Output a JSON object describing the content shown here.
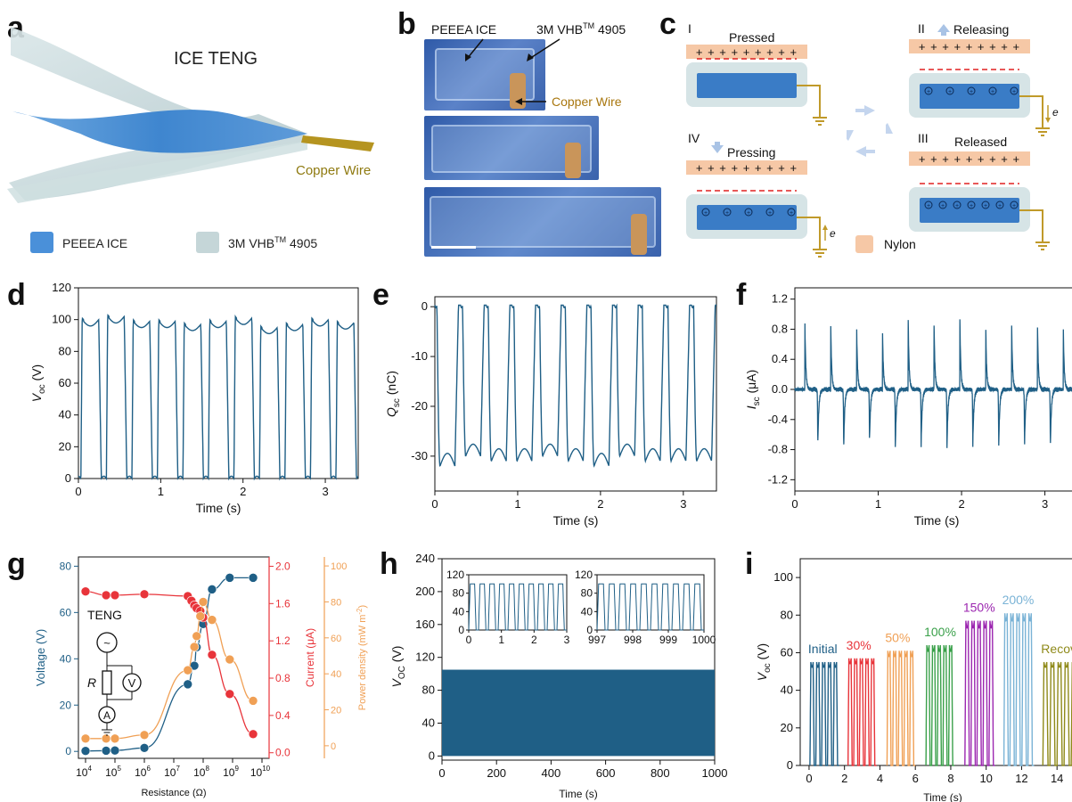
{
  "labels": {
    "a": "a",
    "b": "b",
    "c": "c",
    "d": "d",
    "e": "e",
    "f": "f",
    "g": "g",
    "h": "h",
    "i": "i"
  },
  "panel_a": {
    "title": "ICE TENG",
    "copper": "Copper Wire",
    "legend": [
      {
        "label": "PEEEA ICE",
        "color": "#4a90d9"
      },
      {
        "label": "3M VHB",
        "sup": "TM",
        "label_tail": " 4905",
        "color": "#c5d6d8"
      }
    ]
  },
  "panel_b": {
    "label_ice": "PEEEA ICE",
    "label_vhb": "3M VHB",
    "label_vhb_sup": "TM",
    "label_vhb_tail": " 4905",
    "label_copper": "Copper Wire"
  },
  "panel_c": {
    "stages": [
      {
        "numeral": "I",
        "label": "Pressed"
      },
      {
        "numeral": "II",
        "label": "Releasing"
      },
      {
        "numeral": "III",
        "label": "Released"
      },
      {
        "numeral": "IV",
        "label": "Pressing"
      }
    ],
    "plus_row": "+ + + + + + + + +",
    "electron": "e",
    "nylon": "Nylon",
    "colors": {
      "nylon": "#f6c8a6",
      "ice": "#3a7cc6",
      "vhb": "#d6e4e6",
      "wire": "#c09a2a",
      "minus": "#e02020"
    }
  },
  "chart_data": [
    {
      "id": "d",
      "type": "line",
      "xlabel": "Time (s)",
      "ylabel": "V",
      "ylabel_sub": "oc",
      "ylabel_unit": " (V)",
      "xlim": [
        0,
        3.4
      ],
      "ylim": [
        0,
        120
      ],
      "xticks": [
        0,
        1,
        2,
        3
      ],
      "yticks": [
        0,
        20,
        40,
        60,
        80,
        100,
        120
      ],
      "period": 0.31,
      "phase": 0.03,
      "low": 0,
      "highs": [
        100,
        102,
        99,
        99,
        97,
        99,
        101,
        95,
        97,
        100,
        98
      ],
      "color": "#1f5f86"
    },
    {
      "id": "e",
      "type": "line",
      "xlabel": "Time (s)",
      "ylabel": "Q",
      "ylabel_sub": "sc",
      "ylabel_unit": " (nC)",
      "xlim": [
        0,
        3.4
      ],
      "ylim": [
        -37,
        2
      ],
      "xticks": [
        0,
        1,
        2,
        3
      ],
      "yticks": [
        -30,
        -20,
        -10,
        0
      ],
      "period": 0.31,
      "phase": 0.0,
      "high": 0.3,
      "lows": [
        -32,
        -30,
        -31,
        -31,
        -30,
        -31,
        -32,
        -30,
        -31,
        -31,
        -31
      ],
      "color": "#1f5f86"
    },
    {
      "id": "f",
      "type": "line",
      "xlabel": "Time (s)",
      "ylabel": "I",
      "ylabel_sub": "sc",
      "ylabel_unit": " (μA)",
      "xlim": [
        0,
        3.4
      ],
      "ylim": [
        -1.35,
        1.35
      ],
      "xticks": [
        0,
        1,
        2,
        3
      ],
      "yticks": [
        -1.2,
        -0.8,
        -0.4,
        0.0,
        0.4,
        0.8,
        1.2
      ],
      "ytick_labels": [
        "-1.2",
        "-0.8",
        "-0.4",
        "0.0",
        "0.4",
        "0.8",
        "1.2"
      ],
      "period": 0.31,
      "phase": 0.12,
      "peaks": [
        0.95,
        0.95,
        0.9,
        0.88,
        0.92,
        0.9,
        0.97,
        0.88,
        0.92,
        0.95,
        0.9
      ],
      "troughs": [
        -0.78,
        -0.82,
        -0.72,
        -0.8,
        -0.75,
        -0.8,
        -0.78,
        -0.8,
        -0.78,
        -0.8,
        -0.78
      ],
      "color": "#1f5f86"
    },
    {
      "id": "g",
      "type": "scatter",
      "xlabel": "Resistance (Ω)",
      "x_exponents": [
        4,
        5,
        6,
        7,
        8,
        9,
        10
      ],
      "left_axis": {
        "label": "Voltage (V)",
        "ylim": [
          -3,
          84
        ],
        "ticks": [
          0,
          20,
          40,
          60,
          80
        ],
        "color": "#1f5f86"
      },
      "right_axis": {
        "label": "Current (μA)",
        "ylim": [
          -0.06,
          2.1
        ],
        "ticks": [
          0.0,
          0.4,
          0.8,
          1.2,
          1.6,
          2.0
        ],
        "tick_labels": [
          "0.0",
          "0.4",
          "0.8",
          "1.2",
          "1.6",
          "2.0"
        ],
        "color": "#e8343a"
      },
      "right2_axis": {
        "label": "Power density (mW m",
        "label_sup": "-2",
        "label_tail": ")",
        "ylim": [
          -7,
          105
        ],
        "ticks": [
          0,
          20,
          40,
          60,
          80,
          100
        ],
        "color": "#f0a055"
      },
      "series": [
        {
          "name": "Voltage",
          "axis": "left",
          "color": "#1f5f86",
          "x": [
            10000,
            50000,
            100000,
            1000000,
            30000000,
            50000000,
            60000000,
            100000000,
            200000000,
            800000000,
            5000000000
          ],
          "y": [
            0.2,
            0.3,
            0.4,
            1.5,
            29,
            37,
            45,
            55,
            70,
            75,
            75
          ]
        },
        {
          "name": "Current",
          "axis": "right",
          "color": "#e8343a",
          "x": [
            10000,
            50000,
            100000,
            1000000,
            30000000,
            40000000,
            50000000,
            60000000,
            80000000,
            100000000,
            200000000,
            800000000,
            5000000000
          ],
          "y": [
            1.73,
            1.69,
            1.69,
            1.7,
            1.68,
            1.63,
            1.58,
            1.55,
            1.52,
            1.45,
            1.05,
            0.63,
            0.2
          ]
        },
        {
          "name": "Power density",
          "axis": "right2",
          "color": "#f0a055",
          "x": [
            10000,
            50000,
            100000,
            1000000,
            30000000,
            50000000,
            60000000,
            80000000,
            100000000,
            200000000,
            800000000,
            5000000000
          ],
          "y": [
            4,
            4,
            4,
            6,
            42,
            55,
            61,
            72,
            80,
            70,
            48,
            25
          ]
        }
      ],
      "circuit": {
        "teng": "TENG",
        "r": "R",
        "v": "V",
        "a": "A",
        "source": "~"
      }
    },
    {
      "id": "h",
      "type": "line",
      "xlabel": "Time (s)",
      "ylabel": "V",
      "ylabel_sub": "OC",
      "ylabel_unit": " (V)",
      "xlim": [
        0,
        1000
      ],
      "ylim": [
        -5,
        240
      ],
      "xticks": [
        0,
        200,
        400,
        600,
        800,
        1000
      ],
      "yticks": [
        0,
        40,
        80,
        120,
        160,
        200,
        240
      ],
      "band": [
        0,
        105
      ],
      "color": "#1f5f86",
      "insets": [
        {
          "xlim": [
            0,
            3
          ],
          "ylim": [
            0,
            120
          ],
          "xticks": [
            0,
            1,
            2,
            3
          ],
          "yticks": [
            0,
            40,
            80,
            120
          ],
          "cycles": 10
        },
        {
          "xlim": [
            997,
            1000
          ],
          "ylim": [
            0,
            120
          ],
          "xticks": [
            997,
            998,
            999,
            1000
          ],
          "yticks": [
            0,
            40,
            80,
            120
          ],
          "cycles": 10
        }
      ]
    },
    {
      "id": "i",
      "type": "line",
      "xlabel": "Time (s)",
      "ylabel": "V",
      "ylabel_sub": "oc",
      "ylabel_unit": " (V)",
      "xlim": [
        -0.5,
        15.6
      ],
      "ylim": [
        0,
        110
      ],
      "xticks": [
        0,
        2,
        4,
        6,
        8,
        10,
        12,
        14
      ],
      "yticks": [
        0,
        20,
        40,
        60,
        80,
        100
      ],
      "groups": [
        {
          "label": "Initial",
          "x0": 0.05,
          "x1": 1.7,
          "peak": 55,
          "color": "#1f5f86"
        },
        {
          "label": "30%",
          "x0": 2.2,
          "x1": 3.8,
          "peak": 57,
          "color": "#e8343a"
        },
        {
          "label": "50%",
          "x0": 4.4,
          "x1": 6.0,
          "peak": 61,
          "color": "#f0a055"
        },
        {
          "label": "100%",
          "x0": 6.6,
          "x1": 8.2,
          "peak": 64,
          "color": "#3aa04a"
        },
        {
          "label": "150%",
          "x0": 8.8,
          "x1": 10.5,
          "peak": 77,
          "color": "#9c27b0"
        },
        {
          "label": "200%",
          "x0": 11.0,
          "x1": 12.7,
          "peak": 81,
          "color": "#7ab3d6"
        },
        {
          "label": "Recovery",
          "x0": 13.2,
          "x1": 15.2,
          "peak": 55,
          "color": "#8f8a1a"
        }
      ]
    }
  ]
}
